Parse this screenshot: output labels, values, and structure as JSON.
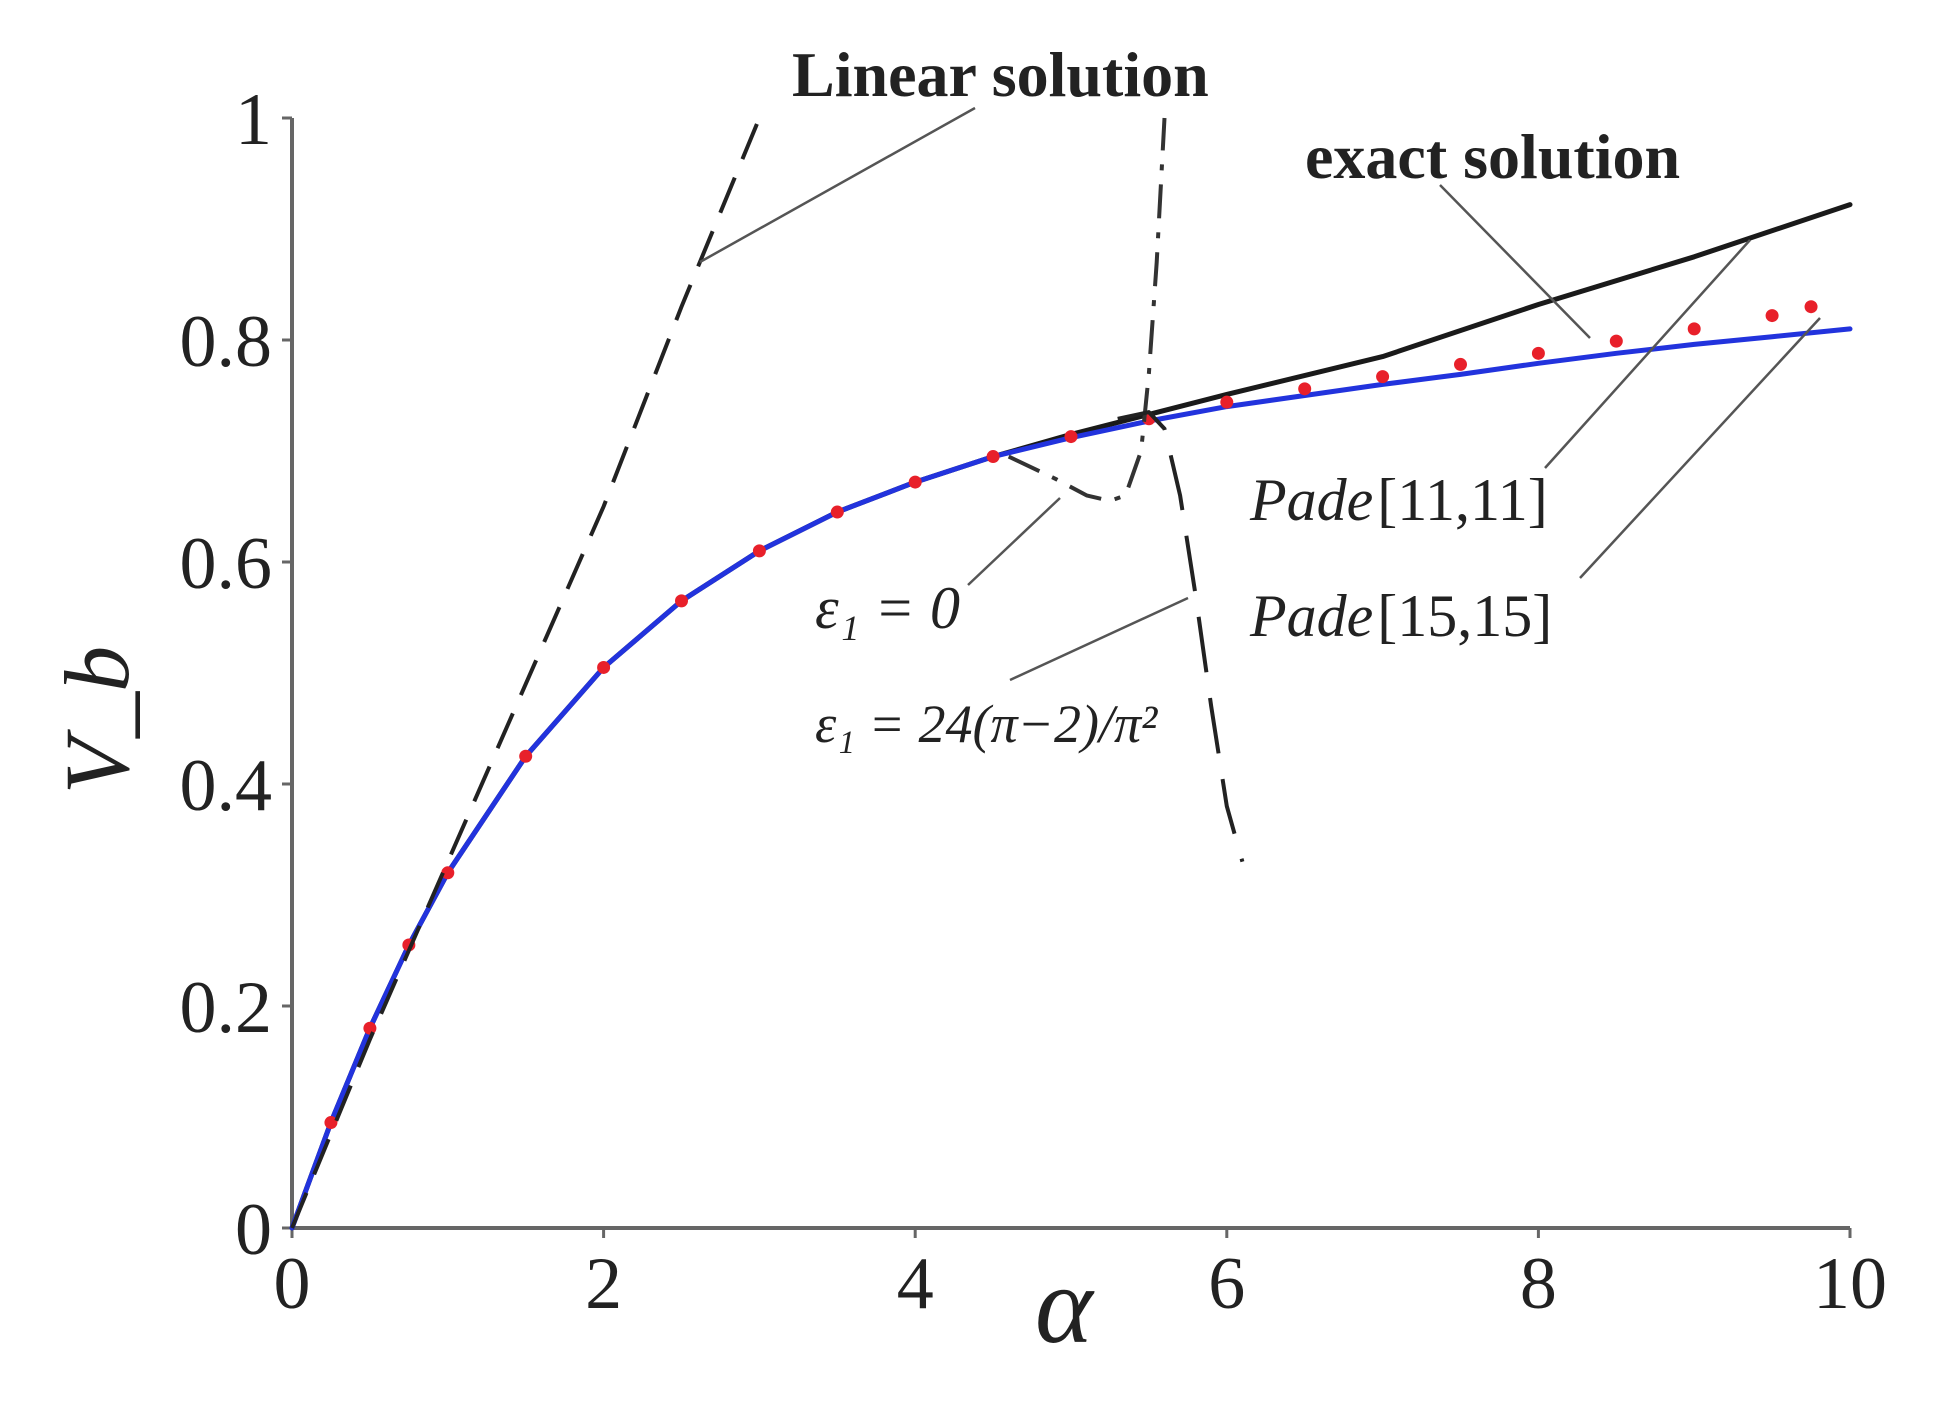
{
  "chart_data": {
    "type": "line",
    "title": "",
    "xlabel": "α",
    "ylabel": "V_b",
    "xlim": [
      0,
      10
    ],
    "ylim": [
      0,
      1
    ],
    "grid": false,
    "x_ticks": [
      "0",
      "2",
      "4",
      "6",
      "8",
      "10"
    ],
    "y_ticks": [
      "0",
      "0.2",
      "0.4",
      "0.6",
      "0.8",
      "1"
    ],
    "colors": {
      "exact": "#1a1a1a",
      "pade_11_11": "#2233dd",
      "pade_15_15": "#e8202a",
      "linear": "#222222",
      "eps0": "#333333",
      "eps24": "#222222",
      "axis": "#666666",
      "leader": "#555555"
    },
    "annotations": {
      "linear": "Linear solution",
      "exact": "exact solution",
      "pade_11_prefix": "Pade",
      "pade_11_args": "[11,11]",
      "pade_15_prefix": "Pade",
      "pade_15_args": "[15,15]",
      "eps0": "ε₁ = 0",
      "eps24": "ε₁ = 24(π−2)/π²"
    },
    "series": [
      {
        "key": "exact",
        "style": "solid",
        "points": [
          [
            0,
            0
          ],
          [
            0.25,
            0.095
          ],
          [
            0.5,
            0.18
          ],
          [
            0.75,
            0.255
          ],
          [
            1,
            0.32
          ],
          [
            1.5,
            0.425
          ],
          [
            2,
            0.505
          ],
          [
            2.5,
            0.565
          ],
          [
            3,
            0.61
          ],
          [
            3.5,
            0.645
          ],
          [
            4,
            0.672
          ],
          [
            4.5,
            0.695
          ],
          [
            5,
            0.715
          ],
          [
            5.5,
            0.733
          ],
          [
            6,
            0.751
          ],
          [
            7,
            0.785
          ],
          [
            8,
            0.832
          ],
          [
            9,
            0.875
          ],
          [
            10,
            0.922
          ]
        ]
      },
      {
        "key": "pade_11_11",
        "style": "solid",
        "points": [
          [
            0,
            0
          ],
          [
            0.25,
            0.095
          ],
          [
            0.5,
            0.18
          ],
          [
            0.75,
            0.255
          ],
          [
            1,
            0.32
          ],
          [
            1.5,
            0.425
          ],
          [
            2,
            0.505
          ],
          [
            2.5,
            0.565
          ],
          [
            3,
            0.61
          ],
          [
            3.5,
            0.645
          ],
          [
            4,
            0.672
          ],
          [
            4.5,
            0.695
          ],
          [
            5,
            0.712
          ],
          [
            5.5,
            0.727
          ],
          [
            6,
            0.74
          ],
          [
            6.5,
            0.75
          ],
          [
            7,
            0.76
          ],
          [
            7.5,
            0.769
          ],
          [
            8,
            0.779
          ],
          [
            8.5,
            0.788
          ],
          [
            9,
            0.796
          ],
          [
            9.5,
            0.803
          ],
          [
            10,
            0.81
          ]
        ]
      },
      {
        "key": "pade_15_15",
        "style": "dotted",
        "points": [
          [
            0,
            0
          ],
          [
            0.25,
            0.095
          ],
          [
            0.5,
            0.18
          ],
          [
            0.75,
            0.255
          ],
          [
            1,
            0.32
          ],
          [
            1.5,
            0.425
          ],
          [
            2,
            0.505
          ],
          [
            2.5,
            0.565
          ],
          [
            3,
            0.61
          ],
          [
            3.5,
            0.645
          ],
          [
            4,
            0.672
          ],
          [
            4.5,
            0.695
          ],
          [
            5,
            0.713
          ],
          [
            5.5,
            0.729
          ],
          [
            6,
            0.744
          ],
          [
            6.5,
            0.756
          ],
          [
            7,
            0.767
          ],
          [
            7.5,
            0.778
          ],
          [
            8,
            0.788
          ],
          [
            8.5,
            0.799
          ],
          [
            9,
            0.81
          ],
          [
            9.5,
            0.822
          ],
          [
            9.75,
            0.83
          ]
        ]
      },
      {
        "key": "linear",
        "style": "dashed",
        "points": [
          [
            0,
            0
          ],
          [
            0.5,
            0.17
          ],
          [
            1,
            0.33
          ],
          [
            1.5,
            0.49
          ],
          [
            2,
            0.65
          ],
          [
            2.5,
            0.83
          ],
          [
            3,
            1.0
          ]
        ]
      },
      {
        "key": "eps0",
        "style": "dashdot",
        "points": [
          [
            4.6,
            0.695
          ],
          [
            4.9,
            0.675
          ],
          [
            5.1,
            0.66
          ],
          [
            5.25,
            0.655
          ],
          [
            5.35,
            0.66
          ],
          [
            5.45,
            0.7
          ],
          [
            5.5,
            0.77
          ],
          [
            5.55,
            0.87
          ],
          [
            5.6,
            1.0
          ]
        ]
      },
      {
        "key": "eps24",
        "style": "longdash",
        "points": [
          [
            5.3,
            0.729
          ],
          [
            5.5,
            0.735
          ],
          [
            5.6,
            0.72
          ],
          [
            5.7,
            0.66
          ],
          [
            5.8,
            0.57
          ],
          [
            5.9,
            0.47
          ],
          [
            6,
            0.38
          ],
          [
            6.1,
            0.33
          ]
        ]
      }
    ]
  }
}
